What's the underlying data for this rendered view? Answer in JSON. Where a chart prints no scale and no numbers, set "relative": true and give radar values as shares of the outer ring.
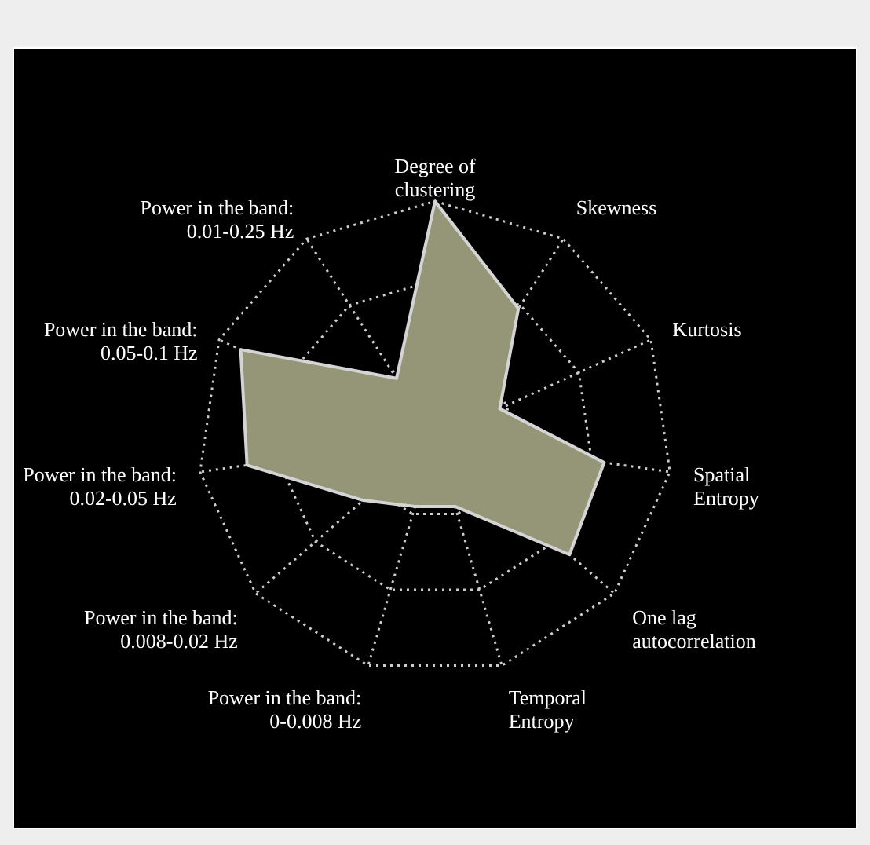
{
  "chart_data": {
    "type": "radar",
    "relative": true,
    "grid": true,
    "categories": [
      "Degree of\nclustering",
      "Skewness",
      "Kurtosis",
      "Spatial\nEntropy",
      "One lag\nautocorrelation",
      "Temporal\nEntropy",
      "Power in the band:\n0-0.008  Hz",
      "Power in the band:\n0.008-0.02  Hz",
      "Power in the band:\n0.02-0.05  Hz",
      "Power in the band:\n0.05-0.1  Hz",
      "Power in the band:\n0.01-0.25  Hz"
    ],
    "series": [
      {
        "color": "#959677",
        "values": [
          1.0,
          0.65,
          0.3,
          0.72,
          0.75,
          0.3,
          0.3,
          0.4,
          0.8,
          0.9,
          0.3
        ]
      }
    ]
  }
}
